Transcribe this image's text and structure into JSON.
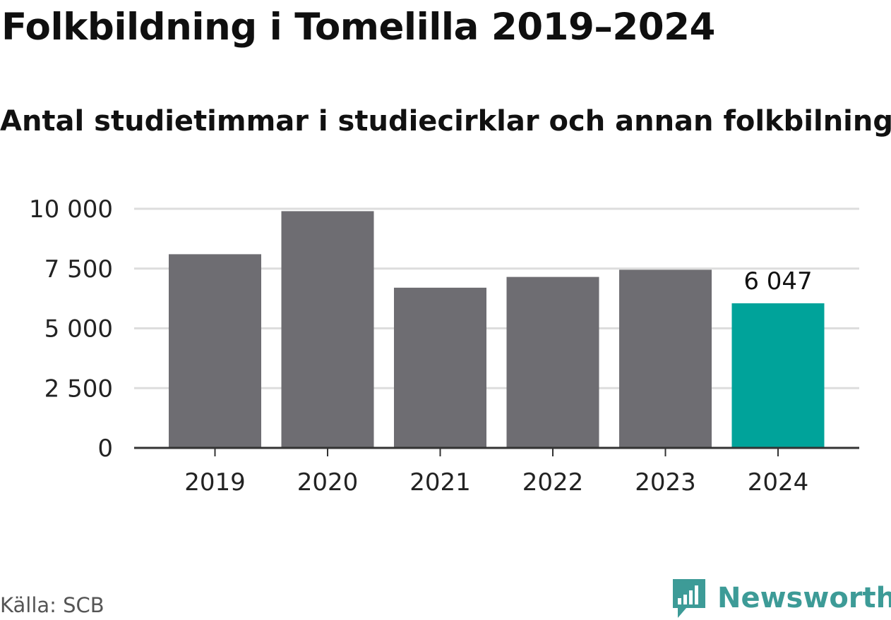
{
  "title": "Folkbildning i Tomelilla 2019–2024",
  "subtitle": "Antal studietimmar i studiecirklar och annan folkbilning",
  "source": "Källa: SCB",
  "brand": {
    "name": "Newsworthy",
    "icon": "newsworthy-logo-icon",
    "color": "#3d9b97"
  },
  "colors": {
    "bar": "#6e6d72",
    "highlight": "#00a39a",
    "grid": "#dddddd",
    "axis": "#333333"
  },
  "chart_data": {
    "type": "bar",
    "title": "Folkbildning i Tomelilla 2019–2024",
    "subtitle": "Antal studietimmar i studiecirklar och annan folkbilning",
    "xlabel": "",
    "ylabel": "",
    "categories": [
      "2019",
      "2020",
      "2021",
      "2022",
      "2023",
      "2024"
    ],
    "values": [
      8100,
      9900,
      6700,
      7150,
      7450,
      6047
    ],
    "highlight_index": 5,
    "data_labels": [
      {
        "index": 5,
        "text": "6 047"
      }
    ],
    "ylim": [
      0,
      10000
    ],
    "yticks": [
      0,
      2500,
      5000,
      7500,
      10000
    ],
    "ytick_labels": [
      "0",
      "2 500",
      "5 000",
      "7 500",
      "10 000"
    ],
    "grid": true,
    "legend": "none"
  }
}
